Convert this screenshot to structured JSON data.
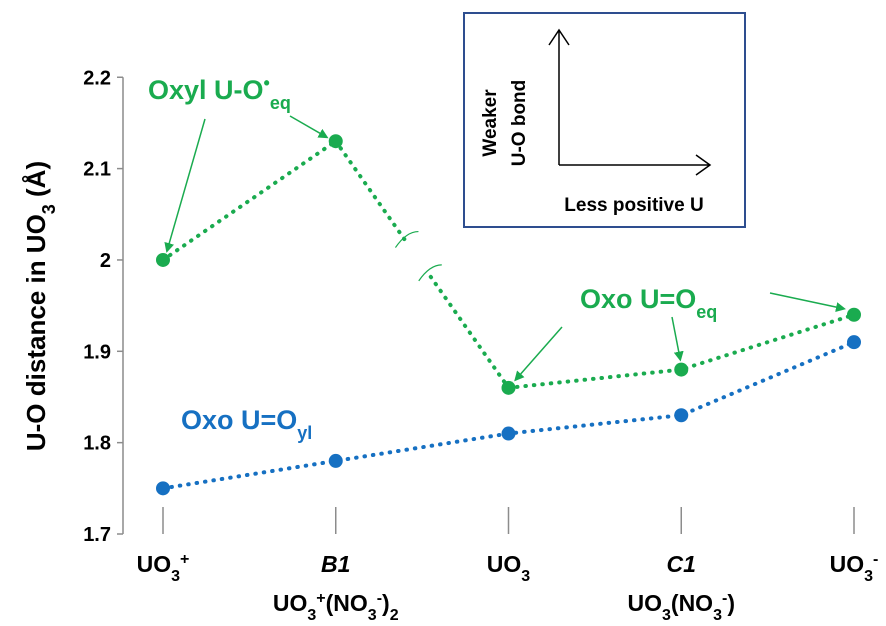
{
  "chart_data": {
    "type": "line",
    "ylabel": "U-O distance in UO",
    "ylabel_sub": "3",
    "ylabel_tail": " (Å)",
    "ylim": [
      1.7,
      2.2
    ],
    "yticks": [
      1.7,
      1.8,
      1.9,
      2,
      2.1,
      2.2
    ],
    "ytick_labels": [
      "1.7",
      "1.8",
      "1.9",
      "2",
      "2.1",
      "2.2"
    ],
    "grid": false,
    "categories": [
      {
        "line1": "UO",
        "line1_sub": "3",
        "line1_sup": "+",
        "line1_italic": false,
        "line2_parts": []
      },
      {
        "line1": "B1",
        "line1_sub": "",
        "line1_sup": "",
        "line1_italic": true,
        "line2_parts": [
          {
            "t": "UO",
            "k": "n"
          },
          {
            "t": "3",
            "k": "sub"
          },
          {
            "t": "+",
            "k": "sup"
          },
          {
            "t": "(NO",
            "k": "n"
          },
          {
            "t": "3",
            "k": "sub"
          },
          {
            "t": "-",
            "k": "sup"
          },
          {
            "t": ")",
            "k": "n"
          },
          {
            "t": "2",
            "k": "sub"
          }
        ]
      },
      {
        "line1": "UO",
        "line1_sub": "3",
        "line1_sup": "",
        "line1_italic": false,
        "line2_parts": []
      },
      {
        "line1": "C1",
        "line1_sub": "",
        "line1_sup": "",
        "line1_italic": true,
        "line2_parts": [
          {
            "t": "UO",
            "k": "n"
          },
          {
            "t": "3",
            "k": "sub"
          },
          {
            "t": "(NO",
            "k": "n"
          },
          {
            "t": "3",
            "k": "sub"
          },
          {
            "t": "-",
            "k": "sup"
          },
          {
            "t": ")",
            "k": "n"
          }
        ]
      },
      {
        "line1": "UO",
        "line1_sub": "3",
        "line1_sup": "-",
        "line1_italic": false,
        "line2_parts": []
      }
    ],
    "series": [
      {
        "label_parts": [
          {
            "t": "Oxyl U-O",
            "k": "n"
          },
          {
            "t": "•",
            "k": "sup"
          },
          {
            "t": "eq",
            "k": "sub"
          }
        ],
        "color": "#1aab4f",
        "points": [
          [
            0,
            2.0
          ],
          [
            1,
            2.13
          ]
        ]
      },
      {
        "label_parts": [
          {
            "t": "Oxo U=O",
            "k": "n"
          },
          {
            "t": "eq",
            "k": "sub"
          }
        ],
        "color": "#1aab4f",
        "points": [
          [
            2,
            1.86
          ],
          [
            3,
            1.88
          ],
          [
            4,
            1.94
          ]
        ]
      },
      {
        "label_parts": [
          {
            "t": "Oxo U=O",
            "k": "n"
          },
          {
            "t": "yl",
            "k": "sub"
          }
        ],
        "color": "#1670c2",
        "points": [
          [
            0,
            1.75
          ],
          [
            1,
            1.78
          ],
          [
            2,
            1.81
          ],
          [
            3,
            1.83
          ],
          [
            4,
            1.91
          ]
        ]
      }
    ],
    "break_connector": {
      "from": [
        1,
        2.13
      ],
      "to": [
        2,
        1.86
      ],
      "color": "#1aab4f"
    },
    "inset": {
      "y_label_line1": "Weaker",
      "y_label_line2": "U-O bond",
      "x_label": "Less positive U",
      "border_color": "#2e4e8f"
    }
  }
}
